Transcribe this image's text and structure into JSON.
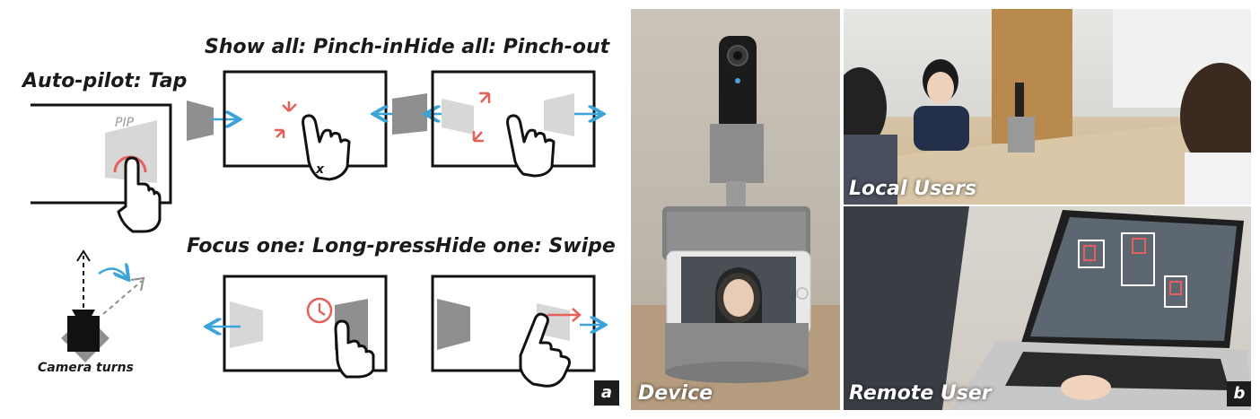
{
  "panel_a": {
    "tag": "a",
    "autopilot_label": "Auto-pilot: Tap",
    "pip_label": "PIP",
    "show_all_label": "Show all: Pinch-in",
    "x_label": "x",
    "hide_all_label": "Hide all: Pinch-out",
    "focus_one_label": "Focus one: Long-press",
    "hide_one_label": "Hide  one: Swipe",
    "camera_turns_label": "Camera turns",
    "colors": {
      "accent_red": "#e5605a",
      "arrow_blue": "#3aa3d9",
      "gray_dark": "#8f8f8f",
      "gray_light": "#d7d7d7"
    }
  },
  "panel_b": {
    "tag": "b",
    "device_label": "Device",
    "local_users_label": "Local Users",
    "remote_user_label": "Remote User"
  }
}
